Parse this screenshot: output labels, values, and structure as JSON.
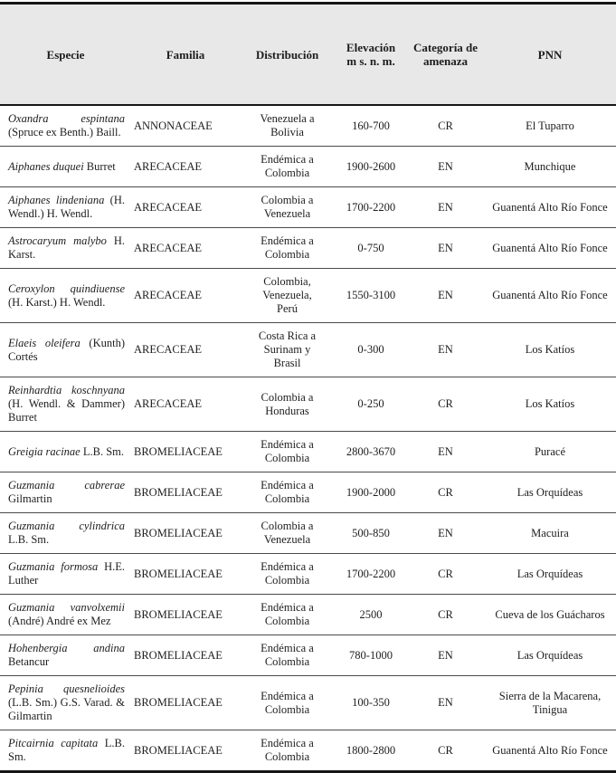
{
  "colors": {
    "header_bg": "#e8e8e8",
    "rule": "#161616",
    "row_line": "#4a4a4a",
    "text": "#1d1d1d",
    "page_bg": "#ffffff"
  },
  "table": {
    "columns": [
      {
        "label": "Especie"
      },
      {
        "label": "Familia"
      },
      {
        "label": "Distribución"
      },
      {
        "label": "Elevación",
        "label2": "m s. n. m."
      },
      {
        "label": "Categoría de",
        "label2": "amenaza"
      },
      {
        "label": "PNN"
      }
    ],
    "rows": [
      {
        "especie_name": "Oxandra espintana",
        "especie_author": "(Spru­ce ex Benth.) Baill.",
        "familia": "ANNONACEAE",
        "distribucion": "Venezuela a Bolivia",
        "elevacion": "160-700",
        "categoria": "CR",
        "pnn": "El Tuparro"
      },
      {
        "especie_name": "Aiphanes duquei",
        "especie_author": "Burret",
        "familia": "ARECACEAE",
        "distribucion": "Endémica a Colombia",
        "elevacion": "1900-2600",
        "categoria": "EN",
        "pnn": "Munchique"
      },
      {
        "especie_name": "Aiphanes lindeniana",
        "especie_author": "(H. Wendl.) H. Wendl.",
        "familia": "ARECACEAE",
        "distribucion": "Colombia a Venezuela",
        "elevacion": "1700-2200",
        "categoria": "EN",
        "pnn": "Guanentá Alto Río Fonce"
      },
      {
        "especie_name": "Astrocaryum malybo",
        "especie_author": "H. Karst.",
        "familia": "ARECACEAE",
        "distribucion": "Endémica a Colombia",
        "elevacion": "0-750",
        "categoria": "EN",
        "pnn": "Guanentá Alto Río Fonce"
      },
      {
        "especie_name": "Ceroxylon quindiuense",
        "especie_author": "(H. Karst.) H. Wendl.",
        "familia": "ARECACEAE",
        "distribucion": "Colombia, Venezuela, Perú",
        "elevacion": "1550-3100",
        "categoria": "EN",
        "pnn": "Guanentá Alto Río Fonce"
      },
      {
        "especie_name": "Elaeis oleifera",
        "especie_author": "(Kunth) Cortés",
        "familia": "ARECACEAE",
        "distribucion": "Costa Rica a Surinam y Brasil",
        "elevacion": "0-300",
        "categoria": "EN",
        "pnn": "Los Katíos"
      },
      {
        "especie_name": "Reinhardtia koschnyana",
        "especie_author": "(H. Wendl. & Dammer) Burret",
        "familia": "ARECACEAE",
        "distribucion": "Colombia a Honduras",
        "elevacion": "0-250",
        "categoria": "CR",
        "pnn": "Los Katíos"
      },
      {
        "especie_name": "Greigia racinae",
        "especie_author": "L.B. Sm.",
        "familia": "BROMELIACEAE",
        "distribucion": "Endémica a Colombia",
        "elevacion": "2800-3670",
        "categoria": "EN",
        "pnn": "Puracé"
      },
      {
        "especie_name": "Guzmania cabrerae",
        "especie_author": "Gilmartin",
        "familia": "BROMELIACEAE",
        "distribucion": "Endémica a Colombia",
        "elevacion": "1900-2000",
        "categoria": "CR",
        "pnn": "Las Orquídeas"
      },
      {
        "especie_name": "Guzmania cylindrica",
        "especie_author": "L.B. Sm.",
        "familia": "BROMELIACEAE",
        "distribucion": "Colombia a Venezuela",
        "elevacion": "500-850",
        "categoria": "EN",
        "pnn": "Macuira"
      },
      {
        "especie_name": "Guzmania formosa",
        "especie_author": "H.E. Luther",
        "familia": "BROMELIACEAE",
        "distribucion": "Endémica a Colombia",
        "elevacion": "1700-2200",
        "categoria": "CR",
        "pnn": "Las Orquídeas"
      },
      {
        "especie_name": "Guzmania vanvolxemii",
        "especie_author": "(André) André ex Mez",
        "familia": "BROMELIACEAE",
        "distribucion": "Endémica a Colombia",
        "elevacion": "2500",
        "categoria": "CR",
        "pnn": "Cueva de los Guácharos"
      },
      {
        "especie_name": "Hohenbergia andina",
        "especie_author": "Betancur",
        "familia": "BROMELIACEAE",
        "distribucion": "Endémica a Colombia",
        "elevacion": "780-1000",
        "categoria": "EN",
        "pnn": "Las Orquídeas"
      },
      {
        "especie_name": "Pepinia quesnelioides",
        "especie_author": "(L.B. Sm.) G.S. Varad. & Gilmartin",
        "familia": "BROMELIACEAE",
        "distribucion": "Endémica a Colombia",
        "elevacion": "100-350",
        "categoria": "EN",
        "pnn": "Sierra de la Macarena, Tinigua"
      },
      {
        "especie_name": "Pitcairnia capitata",
        "especie_author": "L.B. Sm.",
        "familia": "BROMELIACEAE",
        "distribucion": "Endémica a Colombia",
        "elevacion": "1800-2800",
        "categoria": "CR",
        "pnn": "Guanentá Alto Río Fonce"
      }
    ]
  }
}
